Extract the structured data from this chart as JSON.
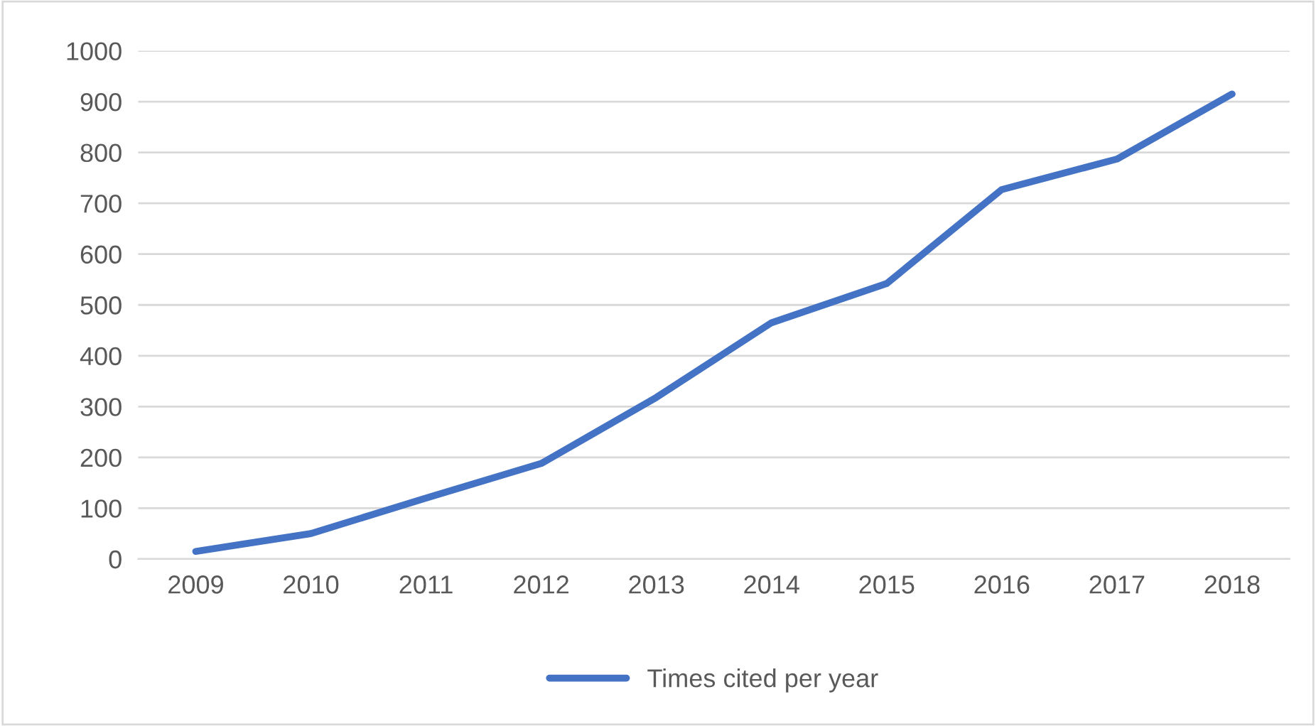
{
  "chart_data": {
    "type": "line",
    "categories": [
      "2009",
      "2010",
      "2011",
      "2012",
      "2013",
      "2014",
      "2015",
      "2016",
      "2017",
      "2018"
    ],
    "series": [
      {
        "name": "Times cited per year",
        "color": "#4472c4",
        "values": [
          15,
          50,
          120,
          188,
          318,
          465,
          542,
          727,
          787,
          915
        ]
      }
    ],
    "ylim": [
      0,
      1000
    ],
    "yticks": [
      0,
      100,
      200,
      300,
      400,
      500,
      600,
      700,
      800,
      900,
      1000
    ],
    "grid": "y",
    "legend": "bottom",
    "marker": "none",
    "line_style": "solid"
  }
}
